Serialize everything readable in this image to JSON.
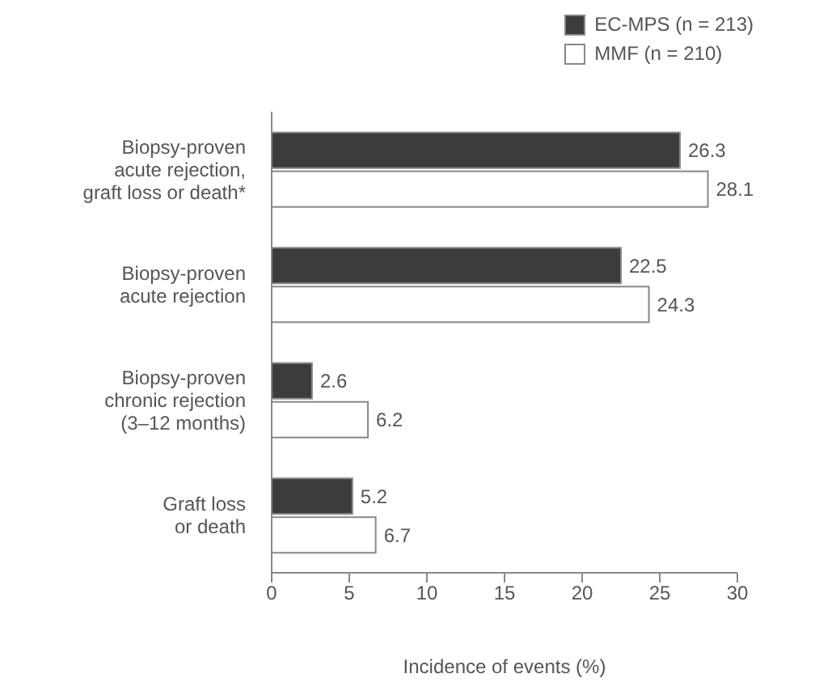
{
  "chart_data": {
    "type": "bar",
    "orientation": "horizontal",
    "categories": [
      "Biopsy-proven\nacute rejection,\ngraft loss or death*",
      "Biopsy-proven\nacute rejection",
      "Biopsy-proven\nchronic rejection\n(3–12 months)",
      "Graft loss\nor death"
    ],
    "series": [
      {
        "name": "EC-MPS (n = 213)",
        "color": "#3c3c3c",
        "values": [
          26.3,
          22.5,
          2.6,
          5.2
        ]
      },
      {
        "name": "MMF (n = 210)",
        "color": "#ffffff",
        "values": [
          28.1,
          24.3,
          6.2,
          6.7
        ]
      }
    ],
    "xlabel": "Incidence of events (%)",
    "xlim": [
      0,
      30
    ],
    "xticks": [
      0,
      5,
      10,
      15,
      20,
      25,
      30
    ],
    "data_labels": true,
    "legend": "top right",
    "grid": false
  }
}
